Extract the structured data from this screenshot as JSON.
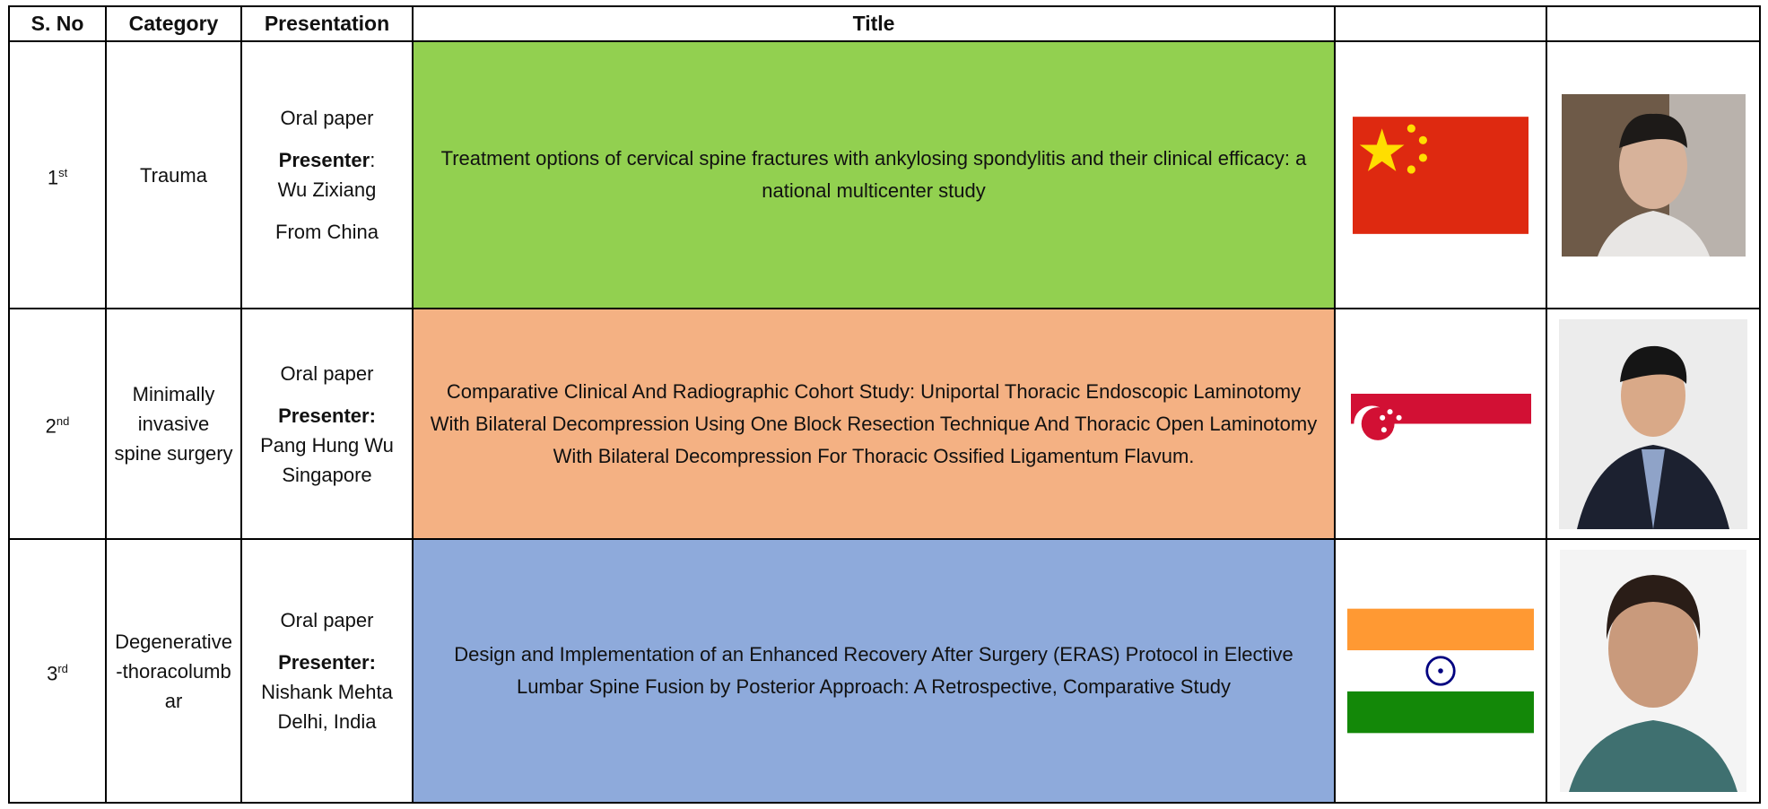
{
  "header": {
    "s_no": "S. No",
    "category": "Category",
    "presentation": "Presentation",
    "title": "Title"
  },
  "rows": [
    {
      "s_no": {
        "number": "1",
        "suffix": "st"
      },
      "category": "Trauma",
      "mode": "Oral paper",
      "presenter_label": "Presenter",
      "presenter_sep": ":",
      "presenter": "Wu Zixiang",
      "origin": "From China",
      "title": "Treatment options of cervical spine fractures with ankylosing spondylitis and their clinical efficacy: a national multicenter study"
    },
    {
      "s_no": {
        "number": "2",
        "suffix": "nd"
      },
      "category": "Minimally invasive spine surgery",
      "mode": "Oral paper",
      "presenter_label": "Presenter:",
      "presenter": "Pang Hung Wu Singapore",
      "title": "Comparative Clinical And Radiographic Cohort Study: Uniportal Thoracic Endoscopic Laminotomy With Bilateral Decompression Using One Block Resection Technique And Thoracic Open Laminotomy With Bilateral Decompression For Thoracic Ossified Ligamentum Flavum."
    },
    {
      "s_no": {
        "number": "3",
        "suffix": "rd"
      },
      "category": "Degenerative-thoracolumbar",
      "mode": "Oral paper",
      "presenter_label": "Presenter:",
      "presenter": "Nishank Mehta Delhi, India",
      "title": "Design and Implementation of an Enhanced Recovery After Surgery (ERAS) Protocol in Elective Lumbar Spine Fusion by Posterior Approach: A Retrospective, Comparative Study"
    }
  ]
}
